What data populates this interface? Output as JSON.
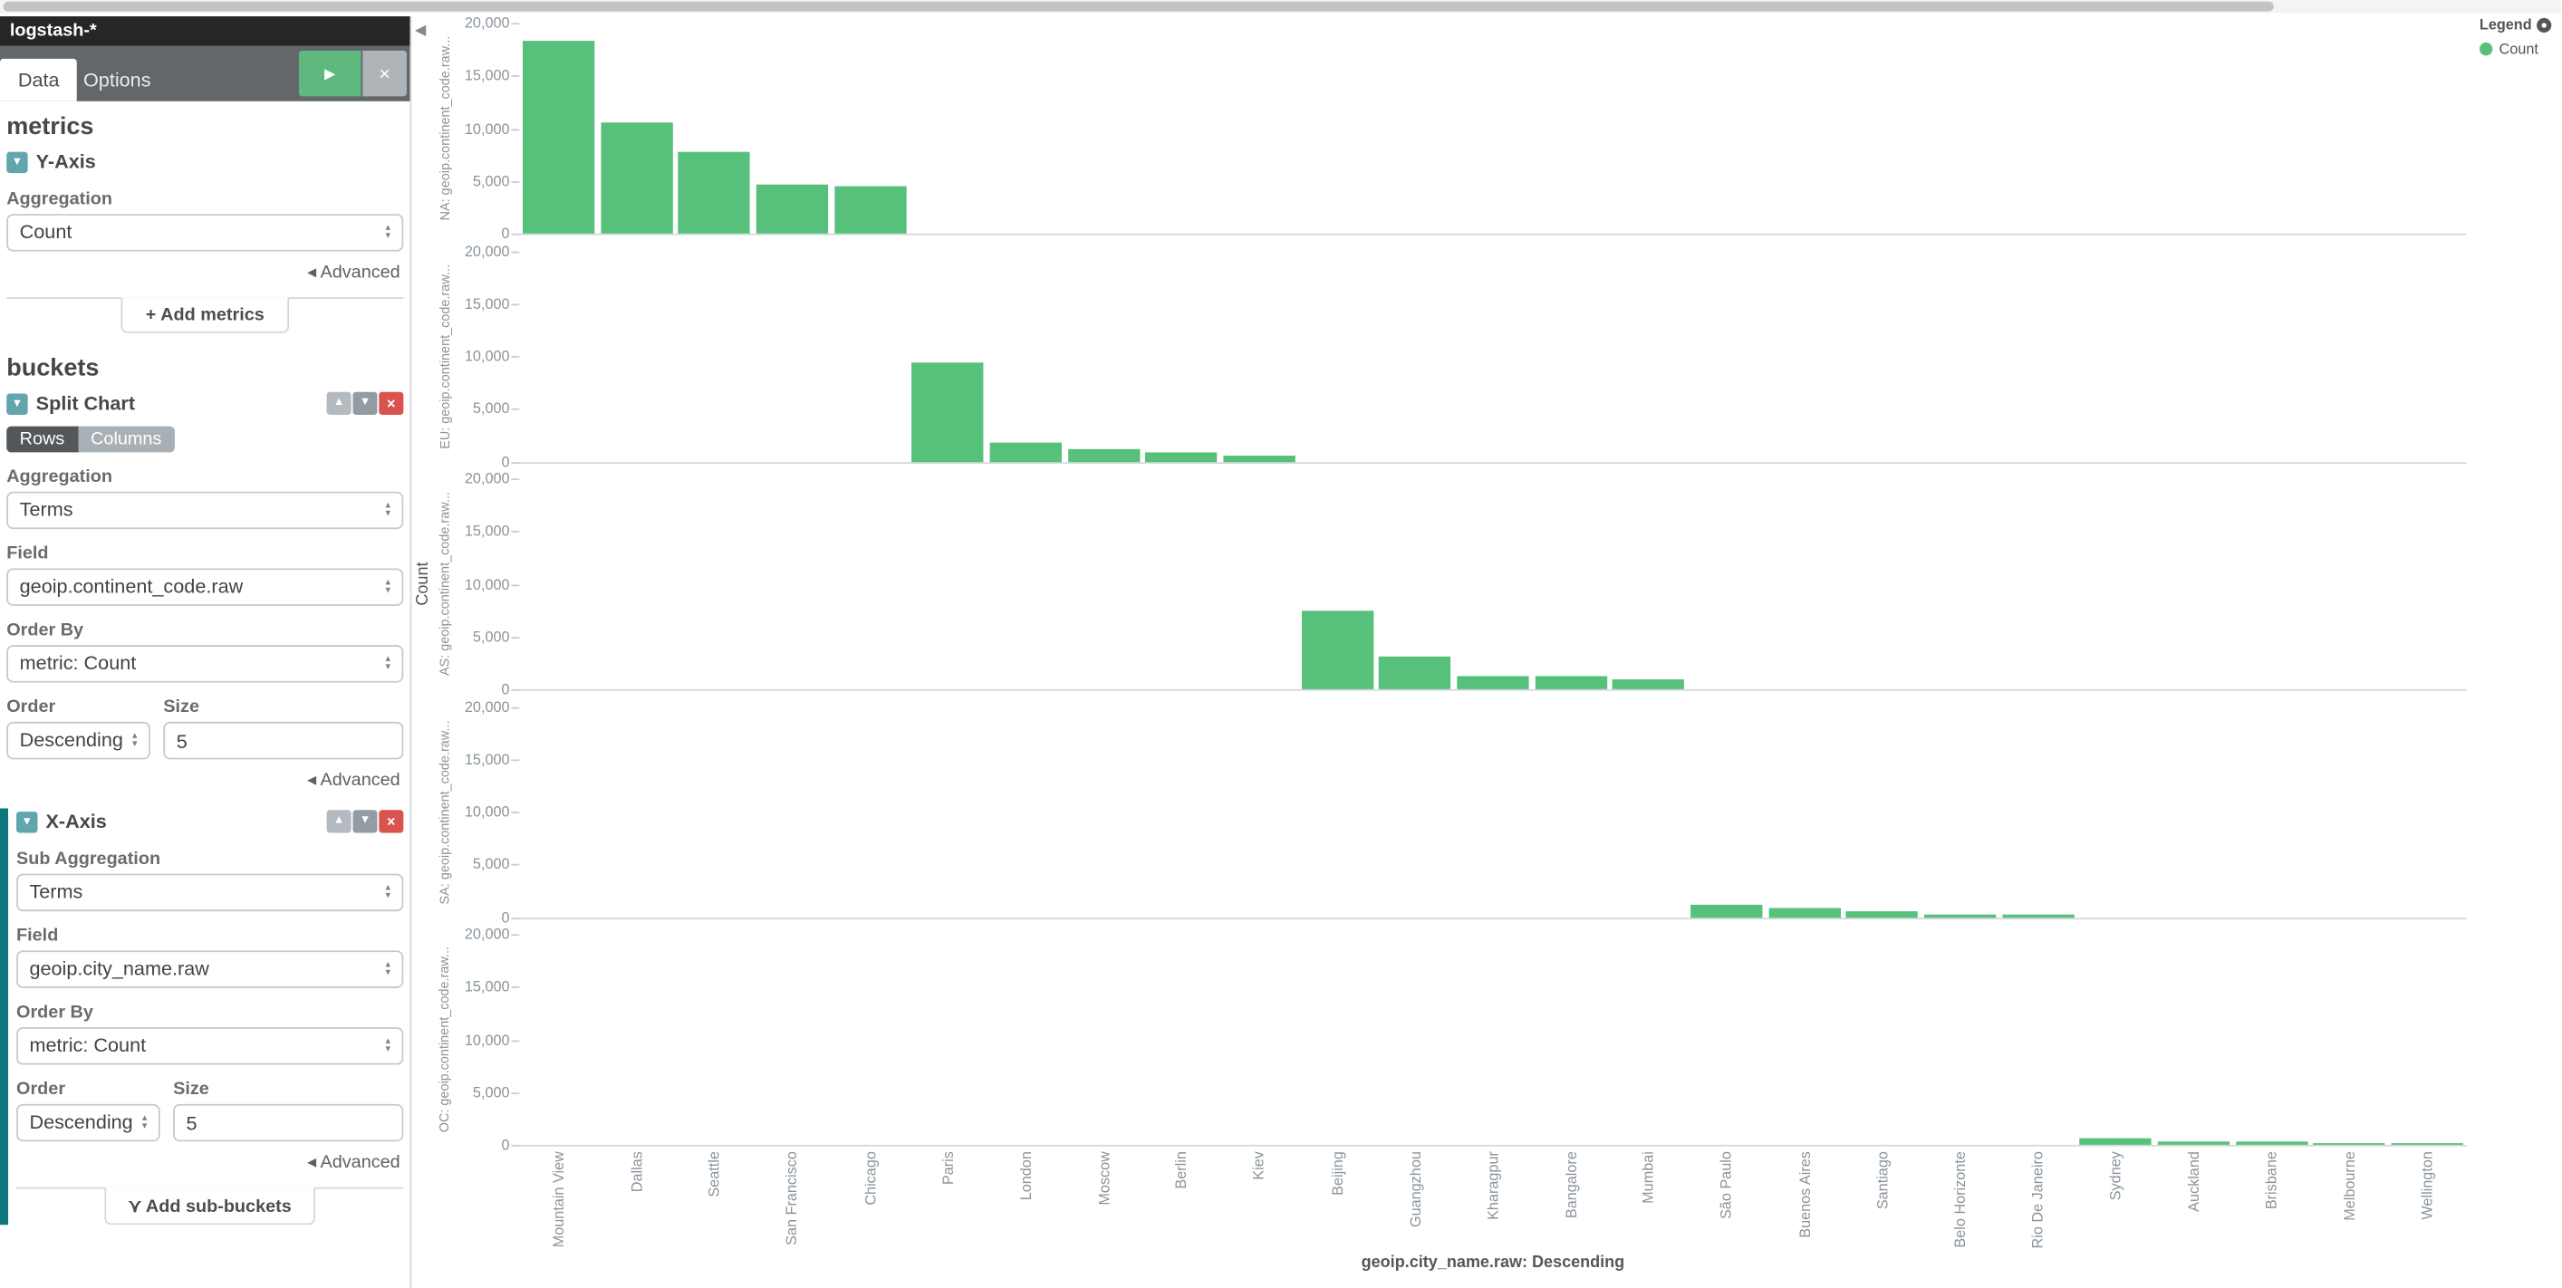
{
  "sidebar": {
    "index_pattern": "logstash-*",
    "tabs": [
      {
        "label": "Data",
        "active": true
      },
      {
        "label": "Options",
        "active": false
      }
    ],
    "icons": {
      "apply": "play-icon",
      "discard": "close-icon",
      "section_toggle": "chevron-down-icon",
      "advanced_caret": "caret-left-icon",
      "add": "plus-icon",
      "sub_bucket": "fork-icon"
    },
    "metrics": {
      "heading": "metrics",
      "y_axis": {
        "label": "Y-Axis",
        "aggregation_label": "Aggregation",
        "aggregation_value": "Count",
        "advanced_label": "Advanced"
      },
      "add_metrics_label": "Add metrics"
    },
    "buckets": {
      "heading": "buckets",
      "split_chart": {
        "label": "Split Chart",
        "rows_label": "Rows",
        "columns_label": "Columns",
        "selected_mode": "Rows",
        "aggregation_label": "Aggregation",
        "aggregation_value": "Terms",
        "field_label": "Field",
        "field_value": "geoip.continent_code.raw",
        "order_by_label": "Order By",
        "order_by_value": "metric: Count",
        "order_label": "Order",
        "order_value": "Descending",
        "size_label": "Size",
        "size_value": "5",
        "advanced_label": "Advanced"
      },
      "x_axis": {
        "label": "X-Axis",
        "sub_aggregation_label": "Sub Aggregation",
        "sub_aggregation_value": "Terms",
        "field_label": "Field",
        "field_value": "geoip.city_name.raw",
        "order_by_label": "Order By",
        "order_by_value": "metric: Count",
        "order_label": "Order",
        "order_value": "Descending",
        "size_label": "Size",
        "size_value": "5",
        "advanced_label": "Advanced"
      },
      "add_sub_buckets_label": "Add sub-buckets"
    }
  },
  "legend": {
    "title": "Legend",
    "items": [
      {
        "label": "Count",
        "color": "#57c17b"
      }
    ]
  },
  "chart_data": {
    "type": "bar",
    "title": "",
    "xlabel": "geoip.city_name.raw: Descending",
    "ylabel": "Count",
    "ylim": [
      0,
      20000
    ],
    "yticks": [
      20000,
      15000,
      10000,
      5000,
      0
    ],
    "bar_color": "#57c17b",
    "grid": false,
    "legend_position": "top-right",
    "categories": [
      "Mountain View",
      "Dallas",
      "Seattle",
      "San Francisco",
      "Chicago",
      "Paris",
      "London",
      "Moscow",
      "Berlin",
      "Kiev",
      "Beijing",
      "Guangzhou",
      "Kharagpur",
      "Bangalore",
      "Mumbai",
      "São Paulo",
      "Buenos Aires",
      "Santiago",
      "Belo Horizonte",
      "Rio De Janeiro",
      "Sydney",
      "Auckland",
      "Brisbane",
      "Melbourne",
      "Wellington"
    ],
    "split_rows": [
      {
        "label": "NA: geoip.continent_code.raw...",
        "data": {
          "Mountain View": 18300,
          "Dallas": 10500,
          "Seattle": 7700,
          "San Francisco": 4650,
          "Chicago": 4500
        }
      },
      {
        "label": "EU: geoip.continent_code.raw...",
        "data": {
          "Paris": 9450,
          "London": 1850,
          "Moscow": 1100,
          "Berlin": 780,
          "Kiev": 540
        }
      },
      {
        "label": "AS: geoip.continent_code.raw...",
        "data": {
          "Beijing": 7450,
          "Guangzhou": 3100,
          "Kharagpur": 1250,
          "Bangalore": 1200,
          "Mumbai": 930
        }
      },
      {
        "label": "SA: geoip.continent_code.raw...",
        "data": {
          "São Paulo": 1100,
          "Buenos Aires": 850,
          "Santiago": 470,
          "Belo Horizonte": 310,
          "Rio De Janeiro": 230
        }
      },
      {
        "label": "OC: geoip.continent_code.raw...",
        "data": {
          "Sydney": 620,
          "Auckland": 310,
          "Brisbane": 280,
          "Melbourne": 230,
          "Wellington": 160
        }
      }
    ]
  }
}
